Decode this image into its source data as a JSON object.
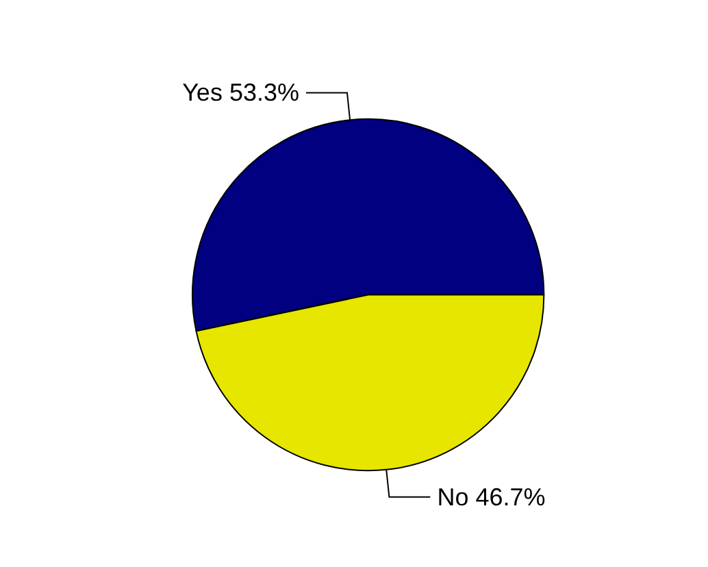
{
  "chart_data": {
    "type": "pie",
    "categories": [
      "Yes",
      "No"
    ],
    "values": [
      53.3,
      46.7
    ],
    "value_labels": [
      "53.3%",
      "46.7%"
    ],
    "colors": [
      "#000080",
      "#e6e600"
    ],
    "legend": false
  }
}
